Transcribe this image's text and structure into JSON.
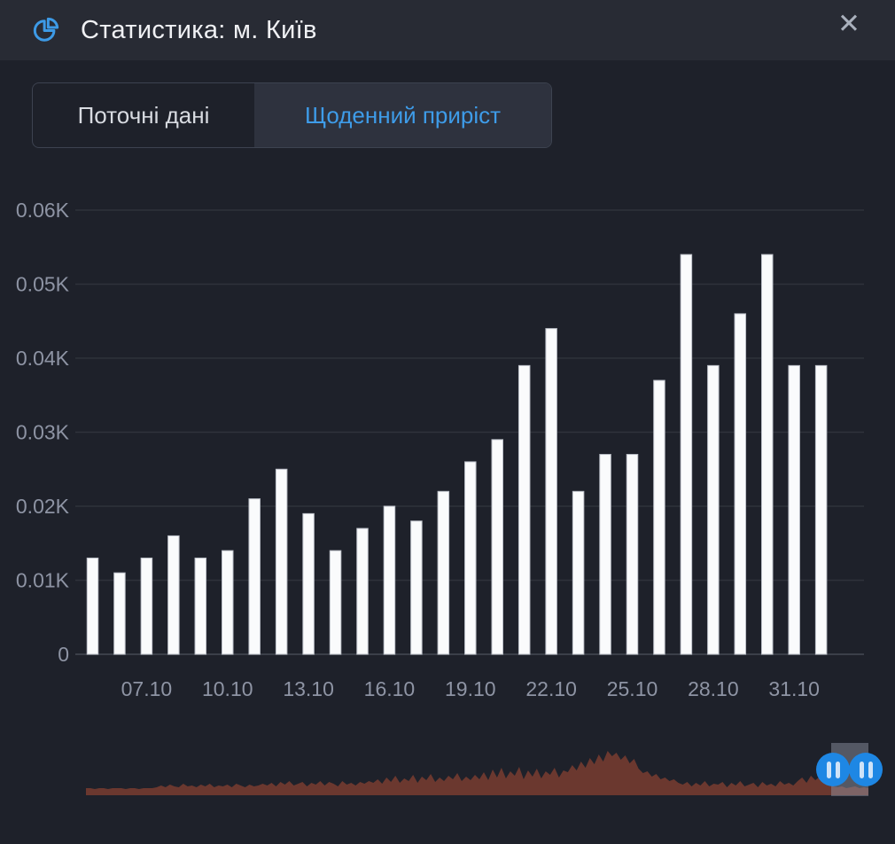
{
  "header": {
    "title": "Статистика: м. Київ",
    "close_glyph": "✕"
  },
  "tabs": [
    {
      "label": "Поточні дані",
      "active": false
    },
    {
      "label": "Щоденний приріст",
      "active": true
    }
  ],
  "colors": {
    "body_bg": "#1e212a",
    "header_bg": "#282b34",
    "accent_blue": "#3d9ae6",
    "active_tab_text": "#3e9ce9",
    "grid": "#2f323b",
    "zero_line": "#3b3f49",
    "axis_text": "#8e94a4",
    "bar_fill": "#fafbfc",
    "bar_stroke": "#bcc0c8",
    "navigator_area": "#6b382f",
    "handle_blue": "#1e87e4"
  },
  "chart_data": [
    {
      "type": "bar",
      "title": "Щоденний приріст — м. Київ",
      "x": [
        "05.10",
        "06.10",
        "07.10",
        "08.10",
        "09.10",
        "10.10",
        "11.10",
        "12.10",
        "13.10",
        "14.10",
        "15.10",
        "16.10",
        "17.10",
        "18.10",
        "19.10",
        "20.10",
        "21.10",
        "22.10",
        "23.10",
        "24.10",
        "25.10",
        "26.10",
        "27.10",
        "28.10",
        "29.10",
        "30.10",
        "31.10",
        "01.11"
      ],
      "values": [
        13,
        11,
        13,
        16,
        13,
        14,
        21,
        25,
        19,
        14,
        17,
        20,
        18,
        22,
        26,
        29,
        39,
        44,
        22,
        27,
        27,
        37,
        54,
        39,
        46,
        54,
        39,
        39
      ],
      "ylim": [
        0,
        60
      ],
      "y_tick_values": [
        60,
        50,
        40,
        30,
        20,
        10,
        0
      ],
      "y_tick_labels": [
        "0.06K",
        "0.05K",
        "0.04K",
        "0.03K",
        "0.02K",
        "0.01K",
        "0"
      ],
      "x_tick_indices": [
        2,
        5,
        8,
        11,
        14,
        17,
        20,
        23,
        26
      ],
      "x_tick_labels": [
        "07.10",
        "10.10",
        "13.10",
        "16.10",
        "19.10",
        "22.10",
        "25.10",
        "28.10",
        "31.10"
      ],
      "grid": true,
      "legend": "none",
      "xlabel": "",
      "ylabel": ""
    },
    {
      "type": "area",
      "role": "range-navigator",
      "title": "",
      "values": [
        8,
        8,
        7,
        8,
        8,
        7,
        8,
        8,
        8,
        7,
        8,
        8,
        7,
        8,
        8,
        8,
        9,
        11,
        9,
        12,
        10,
        9,
        13,
        10,
        11,
        9,
        12,
        10,
        13,
        9,
        11,
        10,
        12,
        9,
        13,
        11,
        9,
        12,
        10,
        11,
        13,
        11,
        14,
        10,
        15,
        12,
        16,
        11,
        13,
        15,
        10,
        14,
        12,
        16,
        11,
        15,
        13,
        10,
        16,
        12,
        14,
        11,
        15,
        13,
        16,
        14,
        18,
        13,
        20,
        15,
        22,
        14,
        19,
        16,
        23,
        14,
        21,
        17,
        24,
        15,
        20,
        16,
        22,
        18,
        25,
        16,
        21,
        17,
        23,
        18,
        26,
        17,
        29,
        20,
        31,
        19,
        27,
        22,
        32,
        18,
        28,
        21,
        30,
        19,
        27,
        23,
        31,
        20,
        28,
        26,
        34,
        28,
        38,
        31,
        42,
        35,
        46,
        38,
        50,
        44,
        48,
        40,
        45,
        36,
        41,
        30,
        25,
        27,
        21,
        24,
        18,
        20,
        16,
        18,
        14,
        12,
        15,
        10,
        14,
        11,
        16,
        10,
        13,
        12,
        15,
        9,
        14,
        11,
        16,
        10,
        12,
        14,
        9,
        15,
        11,
        13,
        10,
        16,
        12,
        14,
        11,
        16,
        20,
        14,
        22,
        17,
        21,
        15,
        19,
        10,
        9,
        10,
        8,
        9,
        10,
        8,
        9,
        8
      ],
      "legend": "none"
    }
  ]
}
